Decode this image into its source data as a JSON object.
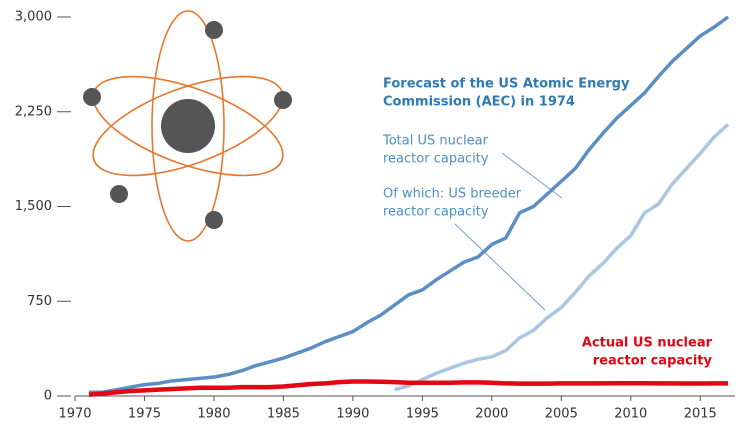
{
  "chart_data": {
    "type": "line",
    "x": [
      1971,
      1972,
      1973,
      1974,
      1975,
      1976,
      1977,
      1978,
      1979,
      1980,
      1981,
      1982,
      1983,
      1984,
      1985,
      1986,
      1987,
      1988,
      1989,
      1990,
      1991,
      1992,
      1993,
      1994,
      1995,
      1996,
      1997,
      1998,
      1999,
      2000,
      2001,
      2002,
      2003,
      2004,
      2005,
      2006,
      2007,
      2008,
      2009,
      2010,
      2011,
      2012,
      2013,
      2014,
      2015,
      2016,
      2017
    ],
    "series": [
      {
        "name": "Total US nuclear reactor capacity",
        "color": "#5b8ec4",
        "values": [
          30,
          30,
          50,
          70,
          90,
          100,
          120,
          130,
          140,
          150,
          170,
          200,
          240,
          270,
          300,
          340,
          380,
          430,
          470,
          510,
          580,
          640,
          720,
          800,
          840,
          920,
          990,
          1060,
          1100,
          1200,
          1250,
          1450,
          1500,
          1600,
          1700,
          1800,
          1950,
          2080,
          2200,
          2300,
          2400,
          2530,
          2650,
          2750,
          2850,
          2920,
          3000
        ]
      },
      {
        "name": "Of which: US breeder reactor capacity",
        "color": "#a9c6e3",
        "values": [
          null,
          null,
          null,
          null,
          null,
          null,
          null,
          null,
          null,
          null,
          null,
          null,
          null,
          null,
          null,
          null,
          null,
          null,
          null,
          null,
          null,
          null,
          50,
          80,
          130,
          180,
          220,
          260,
          290,
          310,
          360,
          460,
          520,
          620,
          700,
          820,
          950,
          1050,
          1170,
          1270,
          1450,
          1520,
          1680,
          1800,
          1920,
          2050,
          2150
        ]
      },
      {
        "name": "Actual US nuclear reactor capacity",
        "color": "#e30613",
        "values": [
          10,
          20,
          30,
          40,
          45,
          50,
          55,
          60,
          65,
          65,
          65,
          70,
          70,
          70,
          75,
          85,
          95,
          100,
          110,
          115,
          115,
          113,
          110,
          105,
          105,
          105,
          105,
          108,
          108,
          105,
          100,
          98,
          98,
          98,
          100,
          100,
          100,
          100,
          101,
          101,
          101,
          100,
          100,
          99,
          99,
          100,
          100
        ]
      }
    ],
    "xlim": [
      1970,
      2017.5
    ],
    "xticks": [
      1970,
      1975,
      1980,
      1985,
      1990,
      1995,
      2000,
      2005,
      2010,
      2015
    ],
    "ylim": [
      0,
      3000
    ],
    "yticks": [
      0,
      750,
      {
        "value": 1500,
        "label": "1,500"
      },
      {
        "value": 2250,
        "label": "2,250"
      },
      {
        "value": 3000,
        "label": "3,000"
      }
    ],
    "annotations": [
      {
        "lines": [
          "Forecast of the US Atomic Energy",
          "Commission (AEC) in 1974"
        ]
      },
      {
        "lines": [
          "Total US nuclear",
          "reactor capacity"
        ]
      },
      {
        "lines": [
          "Of which: US breeder",
          "reactor capacity"
        ]
      },
      {
        "lines": [
          "Actual US nuclear",
          "reactor capacity"
        ]
      }
    ]
  }
}
